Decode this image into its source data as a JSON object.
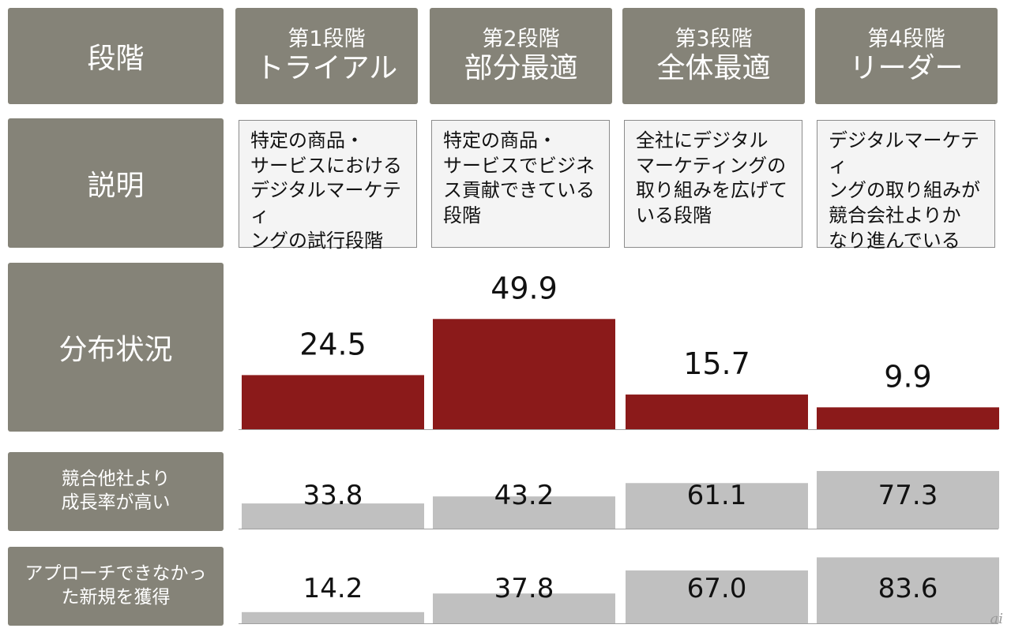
{
  "header": {
    "corner_label": "段階",
    "stages": [
      {
        "sub": "第1段階",
        "main": "トライアル"
      },
      {
        "sub": "第2段階",
        "main": "部分最適"
      },
      {
        "sub": "第3段階",
        "main": "全体最適"
      },
      {
        "sub": "第4段階",
        "main": "リーダー"
      }
    ]
  },
  "rows": {
    "description": {
      "label": "説明",
      "texts": [
        "特定の商品・\nサービスにおける\nデジタルマーケティ\nングの試行段階",
        "特定の商品・\nサービスでビジネ\nス貢献できている\n段階",
        "全社にデジタル\nマーケティングの\n取り組みを広げて\nいる段階",
        "デジタルマーケティ\nングの取り組みが\n競合会社よりか\nなり進んでいる"
      ]
    },
    "distribution": {
      "label": "分布状況"
    },
    "growth": {
      "label_line1": "競合他社より",
      "label_line2": "成長率が高い"
    },
    "acquisition": {
      "label_line1": "アプローチできなかっ",
      "label_line2": "た新規を獲得"
    }
  },
  "chart_data": [
    {
      "type": "bar",
      "categories": [
        "第1段階 トライアル",
        "第2段階 部分最適",
        "第3段階 全体最適",
        "第4段階 リーダー"
      ],
      "values": [
        24.5,
        49.9,
        15.7,
        9.9
      ],
      "labels": [
        "24.5",
        "49.9",
        "15.7",
        "9.9"
      ],
      "color": "#8b1a1a",
      "ylim": [
        0,
        50
      ],
      "grid": false
    },
    {
      "type": "bar",
      "categories": [
        "第1段階 トライアル",
        "第2段階 部分最適",
        "第3段階 全体最適",
        "第4段階 リーダー"
      ],
      "values": [
        33.8,
        43.2,
        61.1,
        77.3
      ],
      "labels": [
        "33.8",
        "43.2",
        "61.1",
        "77.3"
      ],
      "color": "#c0c0c0",
      "ylim": [
        0,
        100
      ],
      "grid": false
    },
    {
      "type": "bar",
      "categories": [
        "第1段階 トライアル",
        "第2段階 部分最適",
        "第3段階 全体最適",
        "第4段階 リーダー"
      ],
      "values": [
        14.2,
        37.8,
        67.0,
        83.6
      ],
      "labels": [
        "14.2",
        "37.8",
        "67.0",
        "83.6"
      ],
      "color": "#c0c0c0",
      "ylim": [
        0,
        100
      ],
      "grid": false
    }
  ],
  "watermark": "ai"
}
